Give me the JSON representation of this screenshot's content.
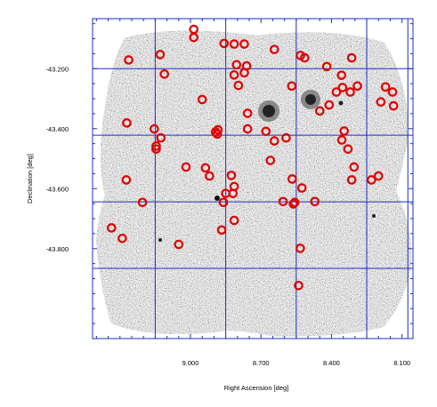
{
  "chart_data": {
    "type": "scatter",
    "title": "",
    "xlabel": "Right Ascension [deg]",
    "ylabel": "Declination [deg]",
    "x_reversed": true,
    "xlim": [
      9.4166,
      8.0533
    ],
    "ylim": [
      -43.0333,
      -44.1
    ],
    "grid": true,
    "grid_color": "#1f2fc8",
    "marker_color": "#e00000",
    "marker": "open circle",
    "background": "grayscale survey image mosaic",
    "xticks": [
      {
        "value": 9.0,
        "label": "9.000"
      },
      {
        "value": 8.7,
        "label": "8.700"
      },
      {
        "value": 8.4,
        "label": "8.400"
      },
      {
        "value": 8.1,
        "label": "8.100"
      }
    ],
    "yticks": [
      {
        "value": -43.2,
        "label": "-43.200"
      },
      {
        "value": -43.4,
        "label": "-43.400"
      },
      {
        "value": -43.6,
        "label": "-43.600"
      },
      {
        "value": -43.8,
        "label": "-43.800"
      }
    ],
    "points": [
      {
        "x": 8.986,
        "y": -43.069
      },
      {
        "x": 8.986,
        "y": -43.096
      },
      {
        "x": 8.857,
        "y": -43.116
      },
      {
        "x": 8.814,
        "y": -43.118
      },
      {
        "x": 8.771,
        "y": -43.118
      },
      {
        "x": 9.129,
        "y": -43.153
      },
      {
        "x": 8.643,
        "y": -43.136
      },
      {
        "x": 9.263,
        "y": -43.171
      },
      {
        "x": 8.532,
        "y": -43.156
      },
      {
        "x": 8.514,
        "y": -43.164
      },
      {
        "x": 8.314,
        "y": -43.164
      },
      {
        "x": 8.804,
        "y": -43.187
      },
      {
        "x": 8.761,
        "y": -43.191
      },
      {
        "x": 8.771,
        "y": -43.214
      },
      {
        "x": 8.42,
        "y": -43.193
      },
      {
        "x": 9.111,
        "y": -43.218
      },
      {
        "x": 8.814,
        "y": -43.221
      },
      {
        "x": 8.357,
        "y": -43.222
      },
      {
        "x": 8.796,
        "y": -43.256
      },
      {
        "x": 8.569,
        "y": -43.258
      },
      {
        "x": 8.29,
        "y": -43.258
      },
      {
        "x": 8.353,
        "y": -43.263
      },
      {
        "x": 8.17,
        "y": -43.261
      },
      {
        "x": 8.379,
        "y": -43.278
      },
      {
        "x": 8.32,
        "y": -43.278
      },
      {
        "x": 8.14,
        "y": -43.278
      },
      {
        "x": 8.95,
        "y": -43.303
      },
      {
        "x": 8.19,
        "y": -43.311
      },
      {
        "x": 8.41,
        "y": -43.321
      },
      {
        "x": 8.136,
        "y": -43.324
      },
      {
        "x": 8.45,
        "y": -43.341
      },
      {
        "x": 8.757,
        "y": -43.349
      },
      {
        "x": 9.271,
        "y": -43.381
      },
      {
        "x": 9.154,
        "y": -43.401
      },
      {
        "x": 8.883,
        "y": -43.404
      },
      {
        "x": 8.757,
        "y": -43.401
      },
      {
        "x": 8.679,
        "y": -43.409
      },
      {
        "x": 8.893,
        "y": -43.411
      },
      {
        "x": 8.886,
        "y": -43.418
      },
      {
        "x": 8.346,
        "y": -43.408
      },
      {
        "x": 9.126,
        "y": -43.431
      },
      {
        "x": 8.593,
        "y": -43.431
      },
      {
        "x": 8.643,
        "y": -43.441
      },
      {
        "x": 8.356,
        "y": -43.438
      },
      {
        "x": 9.146,
        "y": -43.458
      },
      {
        "x": 9.146,
        "y": -43.468
      },
      {
        "x": 8.33,
        "y": -43.468
      },
      {
        "x": 8.66,
        "y": -43.506
      },
      {
        "x": 9.019,
        "y": -43.528
      },
      {
        "x": 8.936,
        "y": -43.531
      },
      {
        "x": 8.304,
        "y": -43.528
      },
      {
        "x": 8.826,
        "y": -43.556
      },
      {
        "x": 8.2,
        "y": -43.558
      },
      {
        "x": 8.919,
        "y": -43.558
      },
      {
        "x": 9.273,
        "y": -43.571
      },
      {
        "x": 8.567,
        "y": -43.568
      },
      {
        "x": 8.23,
        "y": -43.571
      },
      {
        "x": 8.314,
        "y": -43.571
      },
      {
        "x": 8.814,
        "y": -43.593
      },
      {
        "x": 8.526,
        "y": -43.598
      },
      {
        "x": 8.85,
        "y": -43.616
      },
      {
        "x": 8.819,
        "y": -43.616
      },
      {
        "x": 9.204,
        "y": -43.646
      },
      {
        "x": 8.86,
        "y": -43.646
      },
      {
        "x": 8.606,
        "y": -43.643
      },
      {
        "x": 8.556,
        "y": -43.646
      },
      {
        "x": 8.471,
        "y": -43.643
      },
      {
        "x": 8.562,
        "y": -43.651
      },
      {
        "x": 8.814,
        "y": -43.706
      },
      {
        "x": 9.336,
        "y": -43.731
      },
      {
        "x": 8.867,
        "y": -43.738
      },
      {
        "x": 9.29,
        "y": -43.766
      },
      {
        "x": 9.05,
        "y": -43.786
      },
      {
        "x": 8.533,
        "y": -43.799
      },
      {
        "x": 8.54,
        "y": -43.923
      }
    ]
  }
}
